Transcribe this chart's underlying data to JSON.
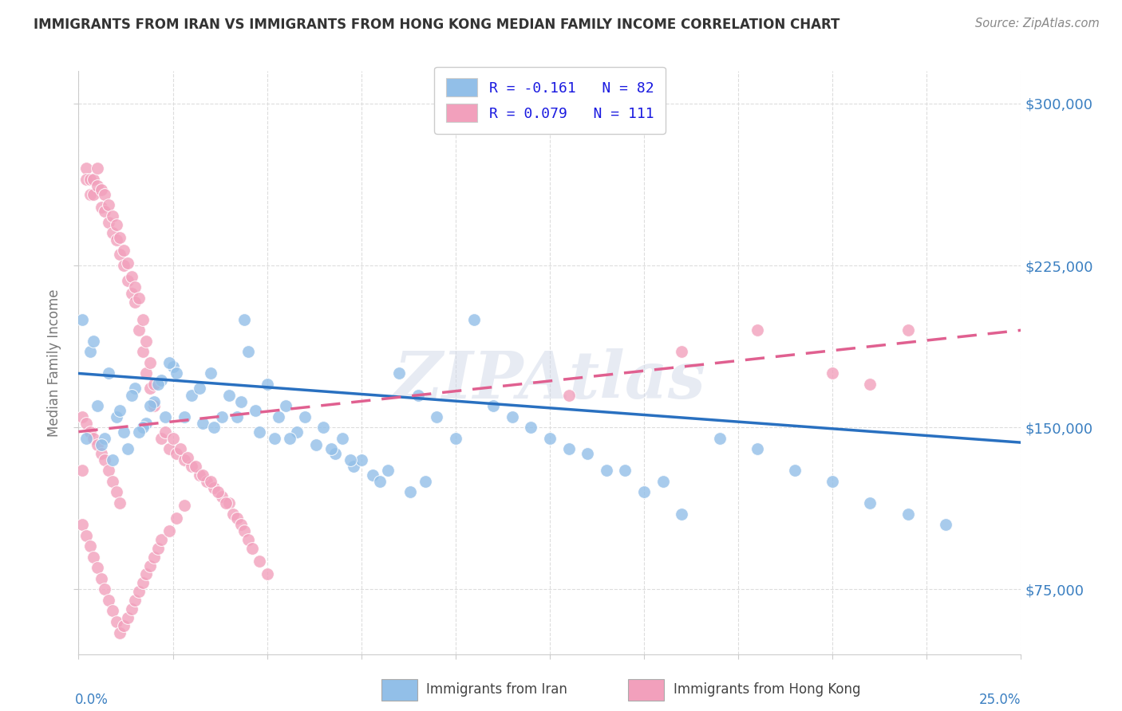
{
  "title": "IMMIGRANTS FROM IRAN VS IMMIGRANTS FROM HONG KONG MEDIAN FAMILY INCOME CORRELATION CHART",
  "source": "Source: ZipAtlas.com",
  "ylabel": "Median Family Income",
  "yticks": [
    75000,
    150000,
    225000,
    300000
  ],
  "ytick_labels": [
    "$75,000",
    "$150,000",
    "$225,000",
    "$300,000"
  ],
  "xlim": [
    0.0,
    0.25
  ],
  "ylim": [
    45000,
    315000
  ],
  "legend_iran": "R = -0.161   N = 82",
  "legend_hk": "R = 0.079   N = 111",
  "iran_color": "#92bfe8",
  "hk_color": "#f2a0bc",
  "iran_line_color": "#2970c0",
  "hk_line_color": "#e06090",
  "iran_R": -0.161,
  "hk_R": 0.079,
  "iran_N": 82,
  "hk_N": 111,
  "iran_line_x0": 0.0,
  "iran_line_y0": 175000,
  "iran_line_x1": 0.25,
  "iran_line_y1": 143000,
  "hk_line_x0": 0.0,
  "hk_line_y0": 148000,
  "hk_line_x1": 0.25,
  "hk_line_y1": 195000,
  "watermark": "ZIPAtlas",
  "title_color": "#333333",
  "source_color": "#888888",
  "axis_label_color": "#3a7fc1",
  "ylabel_color": "#777777"
}
